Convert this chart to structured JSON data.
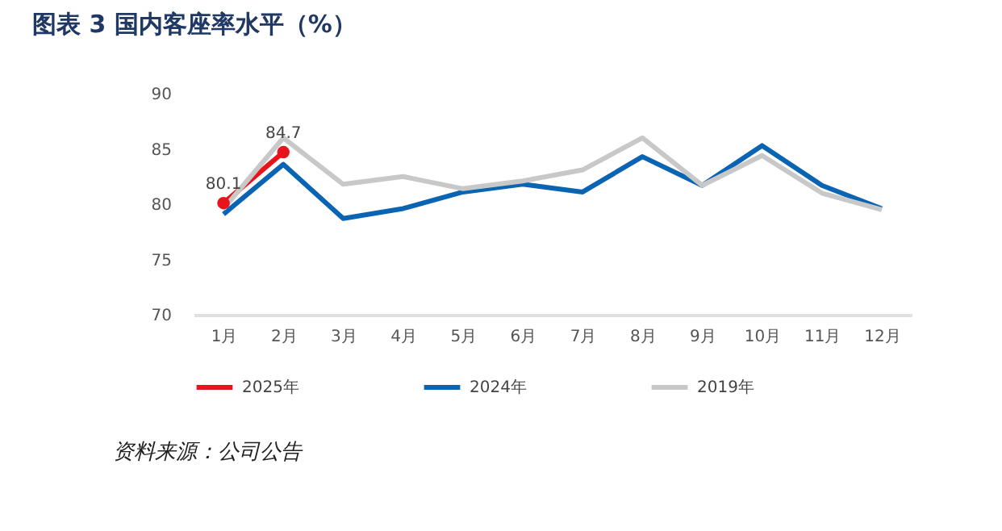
{
  "chart_data": {
    "type": "line",
    "title": "图表 3   国内客座率水平（%）",
    "categories": [
      "1月",
      "2月",
      "3月",
      "4月",
      "5月",
      "6月",
      "7月",
      "8月",
      "9月",
      "10月",
      "11月",
      "12月"
    ],
    "series": [
      {
        "name": "2025年",
        "color": "#e8141c",
        "marker": "circle",
        "values": [
          80.1,
          84.7,
          null,
          null,
          null,
          null,
          null,
          null,
          null,
          null,
          null,
          null
        ],
        "value_labels": [
          "80.1",
          "84.7",
          null,
          null,
          null,
          null,
          null,
          null,
          null,
          null,
          null,
          null
        ]
      },
      {
        "name": "2024年",
        "color": "#0a64b4",
        "values": [
          79.1,
          83.6,
          78.7,
          79.6,
          81.1,
          81.8,
          81.1,
          84.3,
          81.7,
          85.3,
          81.7,
          79.6
        ]
      },
      {
        "name": "2019年",
        "color": "#c8c8c8",
        "values": [
          79.6,
          86.0,
          81.8,
          82.5,
          81.4,
          82.1,
          83.1,
          86.0,
          81.7,
          84.4,
          81.0,
          79.5
        ]
      }
    ],
    "ylim": [
      70,
      90
    ],
    "yticks": [
      70,
      75,
      80,
      85,
      90
    ],
    "grid": false,
    "legend": "bottom",
    "annotations": [
      "资料来源：公司公告"
    ]
  }
}
